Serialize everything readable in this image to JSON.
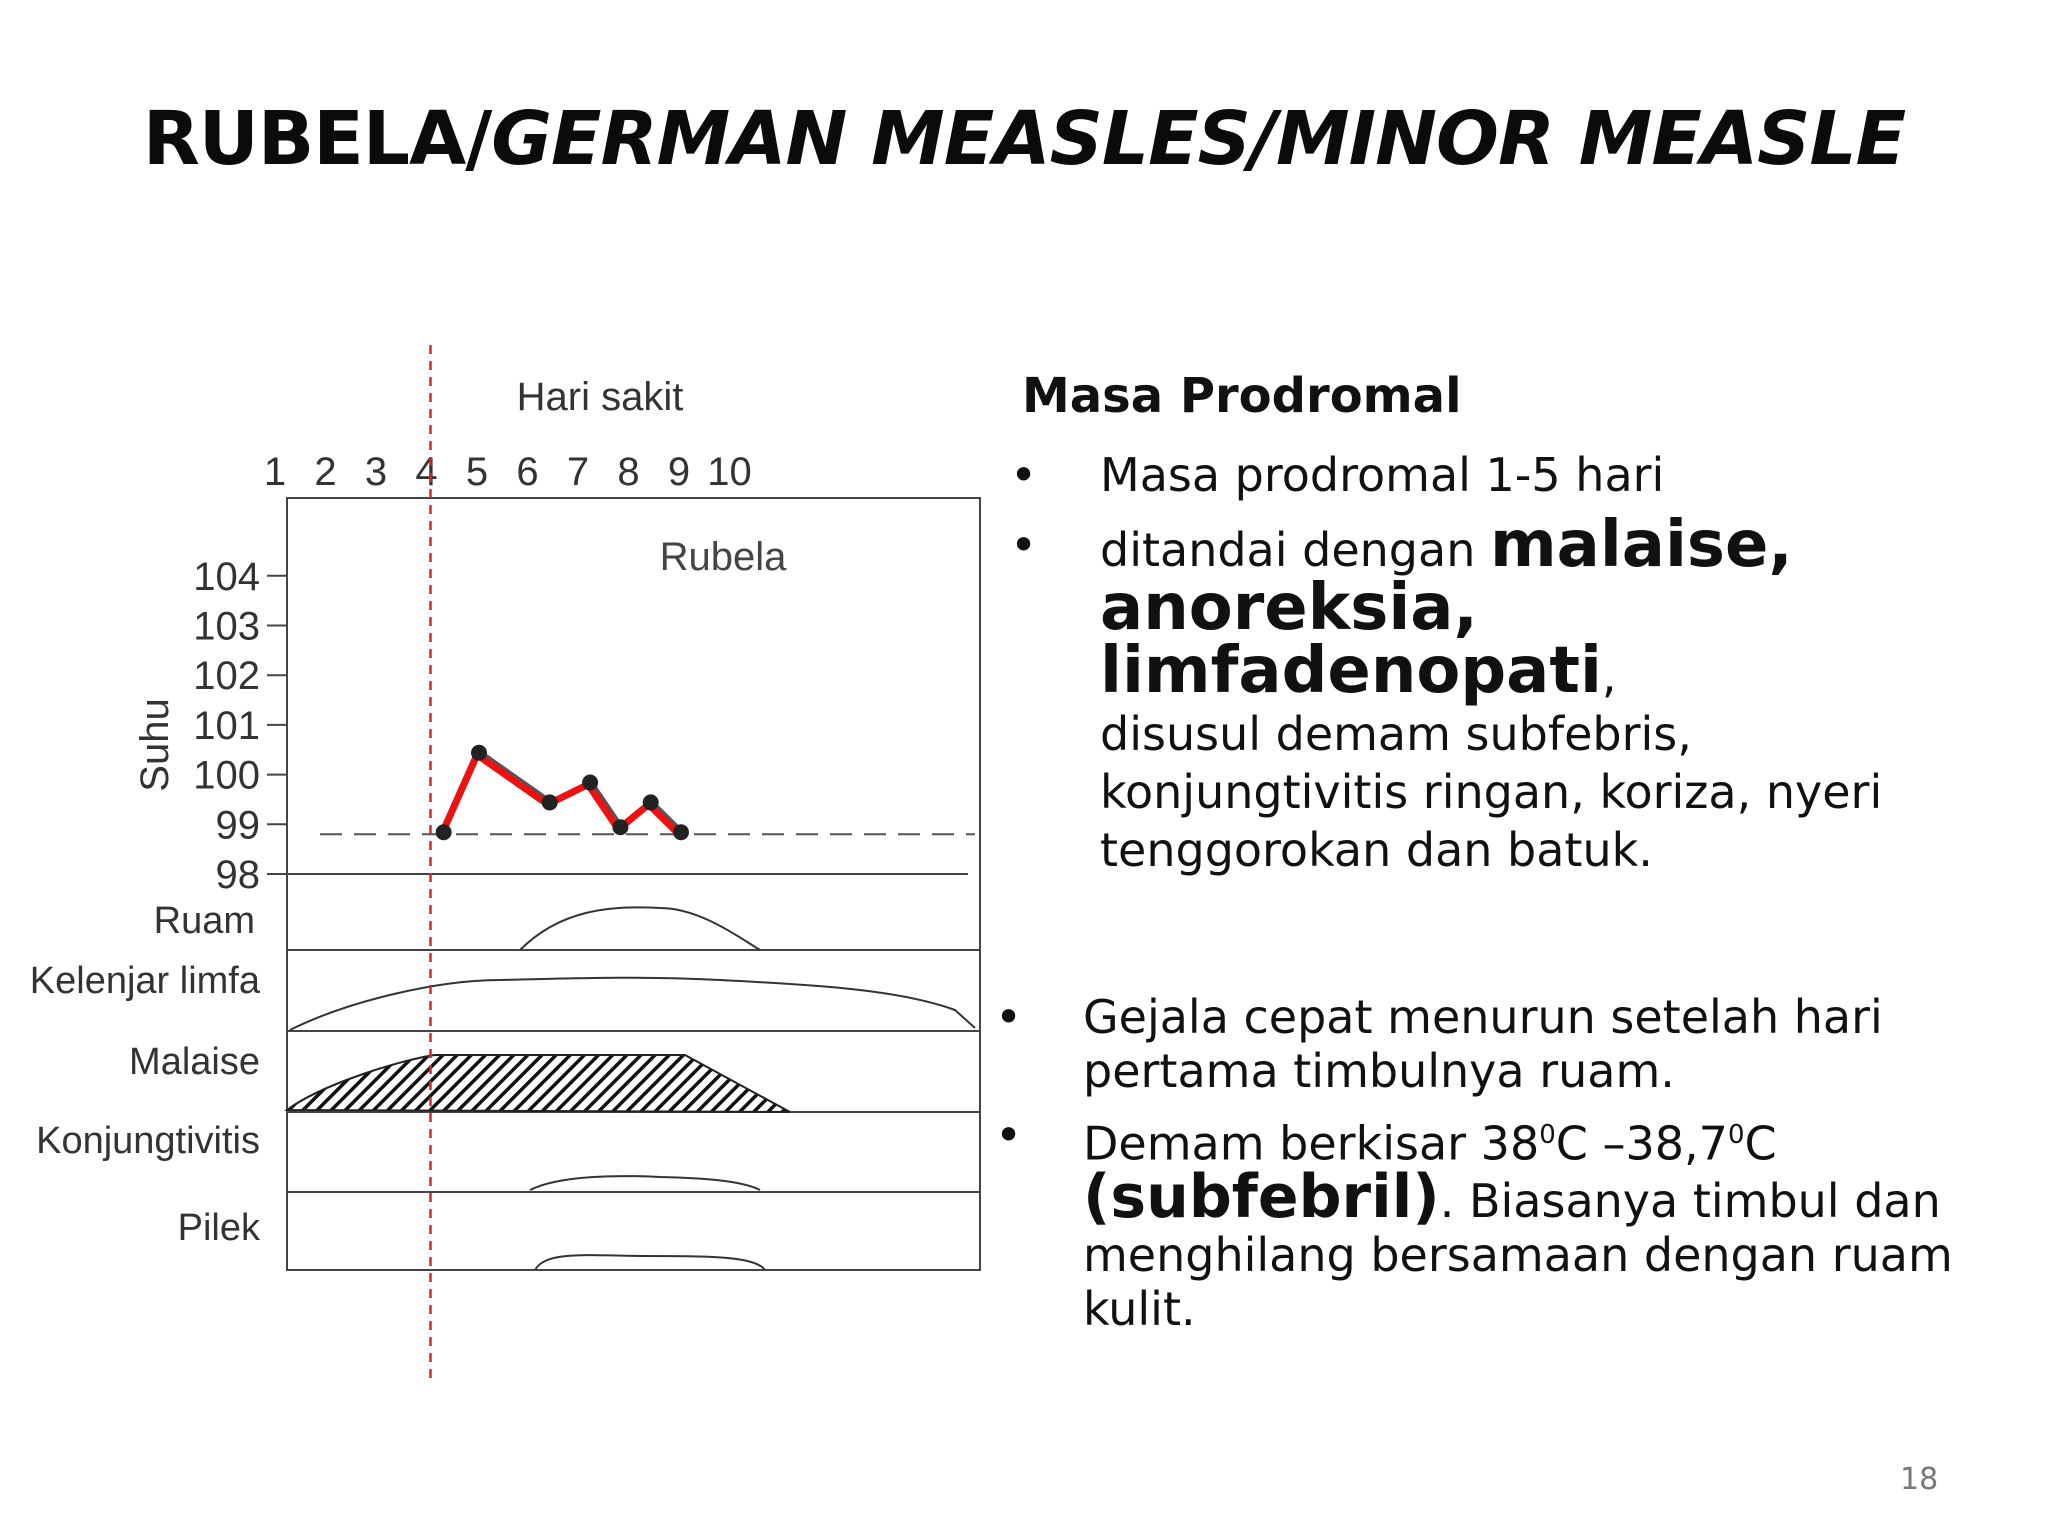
{
  "title": {
    "part1": "RUBELA/",
    "part2": "GERMAN MEASLES/MINOR MEASLE"
  },
  "chart": {
    "header": "Hari sakit",
    "days": [
      "1",
      "2",
      "3",
      "4",
      "5",
      "6",
      "7",
      "8",
      "9",
      "10"
    ],
    "ylabel": "Suhu",
    "yticks": [
      "104",
      "103",
      "102",
      "101",
      "100",
      "99",
      "98"
    ],
    "disease_label": "Rubela",
    "rows": [
      "Ruam",
      "Kelenjar limfa",
      "Malaise",
      "Konjungtivitis",
      "Pilek"
    ]
  },
  "chart_data": {
    "type": "line",
    "xlabel": "Hari sakit",
    "ylabel": "Suhu",
    "ylim": [
      98,
      104.5
    ],
    "x": [
      4.3,
      5,
      6.4,
      7.2,
      7.8,
      8.4,
      9
    ],
    "values": [
      98.8,
      100.4,
      99.4,
      99.8,
      98.9,
      99.4,
      98.8
    ],
    "line_color": "#ee1111",
    "marker_color": "#222222",
    "dashed_baseline": 98.8,
    "onset_day_marker": 4,
    "onset_marker_color": "#dd2222"
  },
  "right": {
    "heading": "Masa Prodromal",
    "bullet1": "Masa prodromal 1-5 hari",
    "bullet2_pre": "ditandai dengan ",
    "bullet2_bold1": "malaise,",
    "bullet2_bold2": "anoreksia, limfadenopati",
    "bullet2_comma": ",",
    "bullet2_rest": "disusul demam subfebris, konjungtivitis ringan, koriza, nyeri tenggorokan dan batuk.",
    "bullet3": "Gejala cepat menurun setelah hari pertama timbulnya ruam.",
    "bullet4_pre": "Demam berkisar 38",
    "bullet4_sup1": "0",
    "bullet4_mid": "C –38,7",
    "bullet4_sup2": "0",
    "bullet4_c": "C",
    "bullet4_bold": "(subfebril)",
    "bullet4_rest": ". Biasanya timbul dan menghilang bersamaan dengan ruam kulit."
  },
  "page_number": "18"
}
